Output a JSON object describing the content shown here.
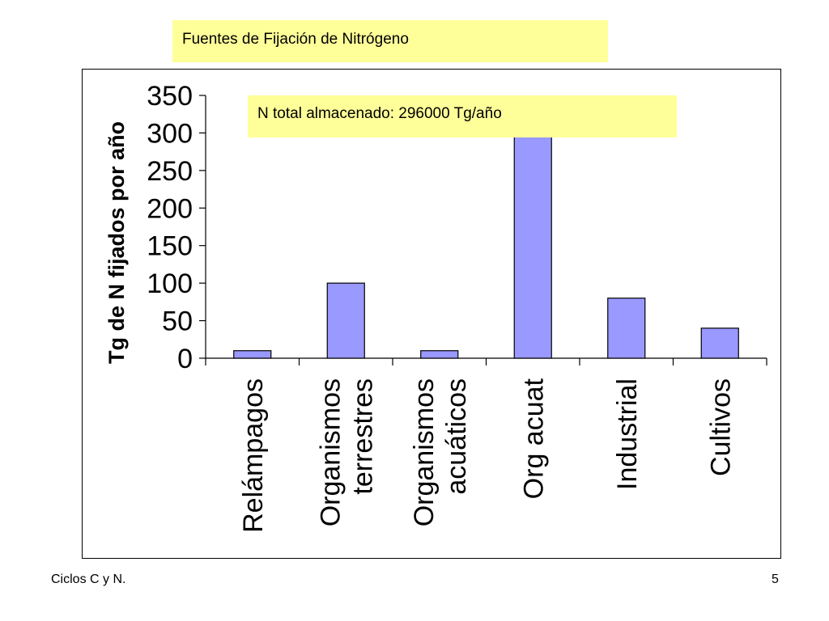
{
  "slide": {
    "title": "Fuentes de Fijación de Nitrógeno",
    "footer_left": "Ciclos C y N.",
    "page_number": "5"
  },
  "annotation": "N total almacenado: 296000 Tg/año",
  "chart_data": {
    "type": "bar",
    "title": "",
    "ylabel": "Tg de N fijados por año",
    "xlabel": "",
    "ylim": [
      0,
      350
    ],
    "yticks": [
      0,
      50,
      100,
      150,
      200,
      250,
      300,
      350
    ],
    "categories": [
      [
        "Relámpagos"
      ],
      [
        "Organismos",
        "terrestres"
      ],
      [
        "Organismos",
        "acuáticos"
      ],
      [
        "Org acuat"
      ],
      [
        "Industrial"
      ],
      [
        "Cultivos"
      ]
    ],
    "series": [
      {
        "values": [
          10,
          100,
          10,
          300,
          80,
          40
        ]
      }
    ],
    "colors": {
      "bar": "#9999ff",
      "bar_stroke": "#000000",
      "axis": "#000000"
    },
    "grid": false,
    "legend": "none"
  }
}
